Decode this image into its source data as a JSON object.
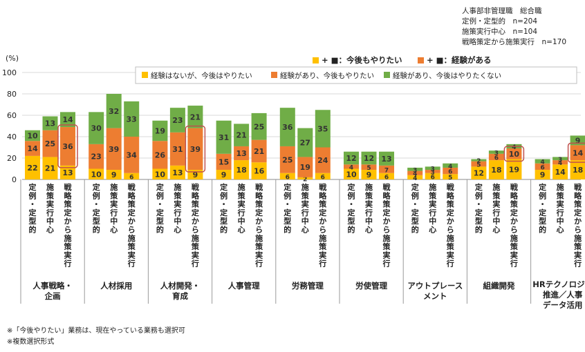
{
  "header_lines": [
    "人事部非管理職　総合職",
    "定例・定型的　n=204",
    "施策実行中心　n=104",
    "戦略策定から施策実行　n=170"
  ],
  "y_unit": "(%)",
  "legend_top": {
    "want_label": "+ ■：今後もやりたい",
    "experience_label": "+ ■：経験がある"
  },
  "notes": [
    "※「今後やりたい」業務は、現在やっている業務も選択可",
    "※複数選択形式"
  ],
  "colors": {
    "no_exp_want": "#FFC000",
    "exp_want": "#ED7D31",
    "exp_not_want": "#70AD47",
    "highlight": "#C0504D"
  },
  "chart_data": {
    "type": "bar",
    "stacked": true,
    "ylim": [
      0,
      100
    ],
    "yticks": [
      0,
      20,
      40,
      60,
      80,
      100
    ],
    "legend": [
      "経験はないが、今後はやりたい",
      "経験があり、今後もやりたい",
      "経験があり、今後はやりたくない"
    ],
    "subcategories": [
      "定例・定型的",
      "施策実行中心",
      "戦略策定から施策実行"
    ],
    "groups": [
      {
        "label": "人事戦略・企画",
        "bars": [
          [
            22,
            14,
            10
          ],
          [
            21,
            25,
            13
          ],
          [
            13,
            36,
            14
          ]
        ],
        "highlight": 2
      },
      {
        "label": "人材採用",
        "bars": [
          [
            10,
            23,
            30
          ],
          [
            9,
            39,
            32
          ],
          [
            6,
            34,
            33
          ]
        ],
        "highlight": null
      },
      {
        "label": "人材開発・育成",
        "bars": [
          [
            10,
            26,
            19
          ],
          [
            13,
            31,
            23
          ],
          [
            9,
            39,
            21
          ]
        ],
        "highlight": 2
      },
      {
        "label": "人事管理",
        "bars": [
          [
            9,
            15,
            31
          ],
          [
            18,
            13,
            21
          ],
          [
            16,
            21,
            25
          ]
        ],
        "highlight": null
      },
      {
        "label": "労務管理",
        "bars": [
          [
            6,
            25,
            36
          ],
          [
            2,
            19,
            27
          ],
          [
            6,
            24,
            35
          ]
        ],
        "highlight": null
      },
      {
        "label": "労使管理",
        "bars": [
          [
            10,
            4,
            12
          ],
          [
            9,
            5,
            12
          ],
          [
            6,
            7,
            13
          ]
        ],
        "highlight": null
      },
      {
        "label": "アウトプレースメント",
        "bars": [
          [
            4,
            4,
            3
          ],
          [
            6,
            3,
            3
          ],
          [
            5,
            6,
            4
          ]
        ],
        "highlight": null
      },
      {
        "label": "組織開発",
        "bars": [
          [
            12,
            5,
            2
          ],
          [
            18,
            6,
            3
          ],
          [
            19,
            10,
            4
          ]
        ],
        "highlight": 2
      },
      {
        "label": "HRテクノロジー推進／人事データ活用",
        "bars": [
          [
            9,
            6,
            4
          ],
          [
            14,
            4,
            3
          ],
          [
            18,
            14,
            9
          ]
        ],
        "highlight": 2
      }
    ],
    "group_label_lines": [
      [
        "人事戦略・",
        "企画"
      ],
      [
        "人材採用"
      ],
      [
        "人材開発・",
        "育成"
      ],
      [
        "人事管理"
      ],
      [
        "労務管理"
      ],
      [
        "労使管理"
      ],
      [
        "アウトプレース",
        "メント"
      ],
      [
        "組織開発"
      ],
      [
        "HRテクノロジー",
        "推進／人事",
        "データ活用"
      ]
    ]
  }
}
